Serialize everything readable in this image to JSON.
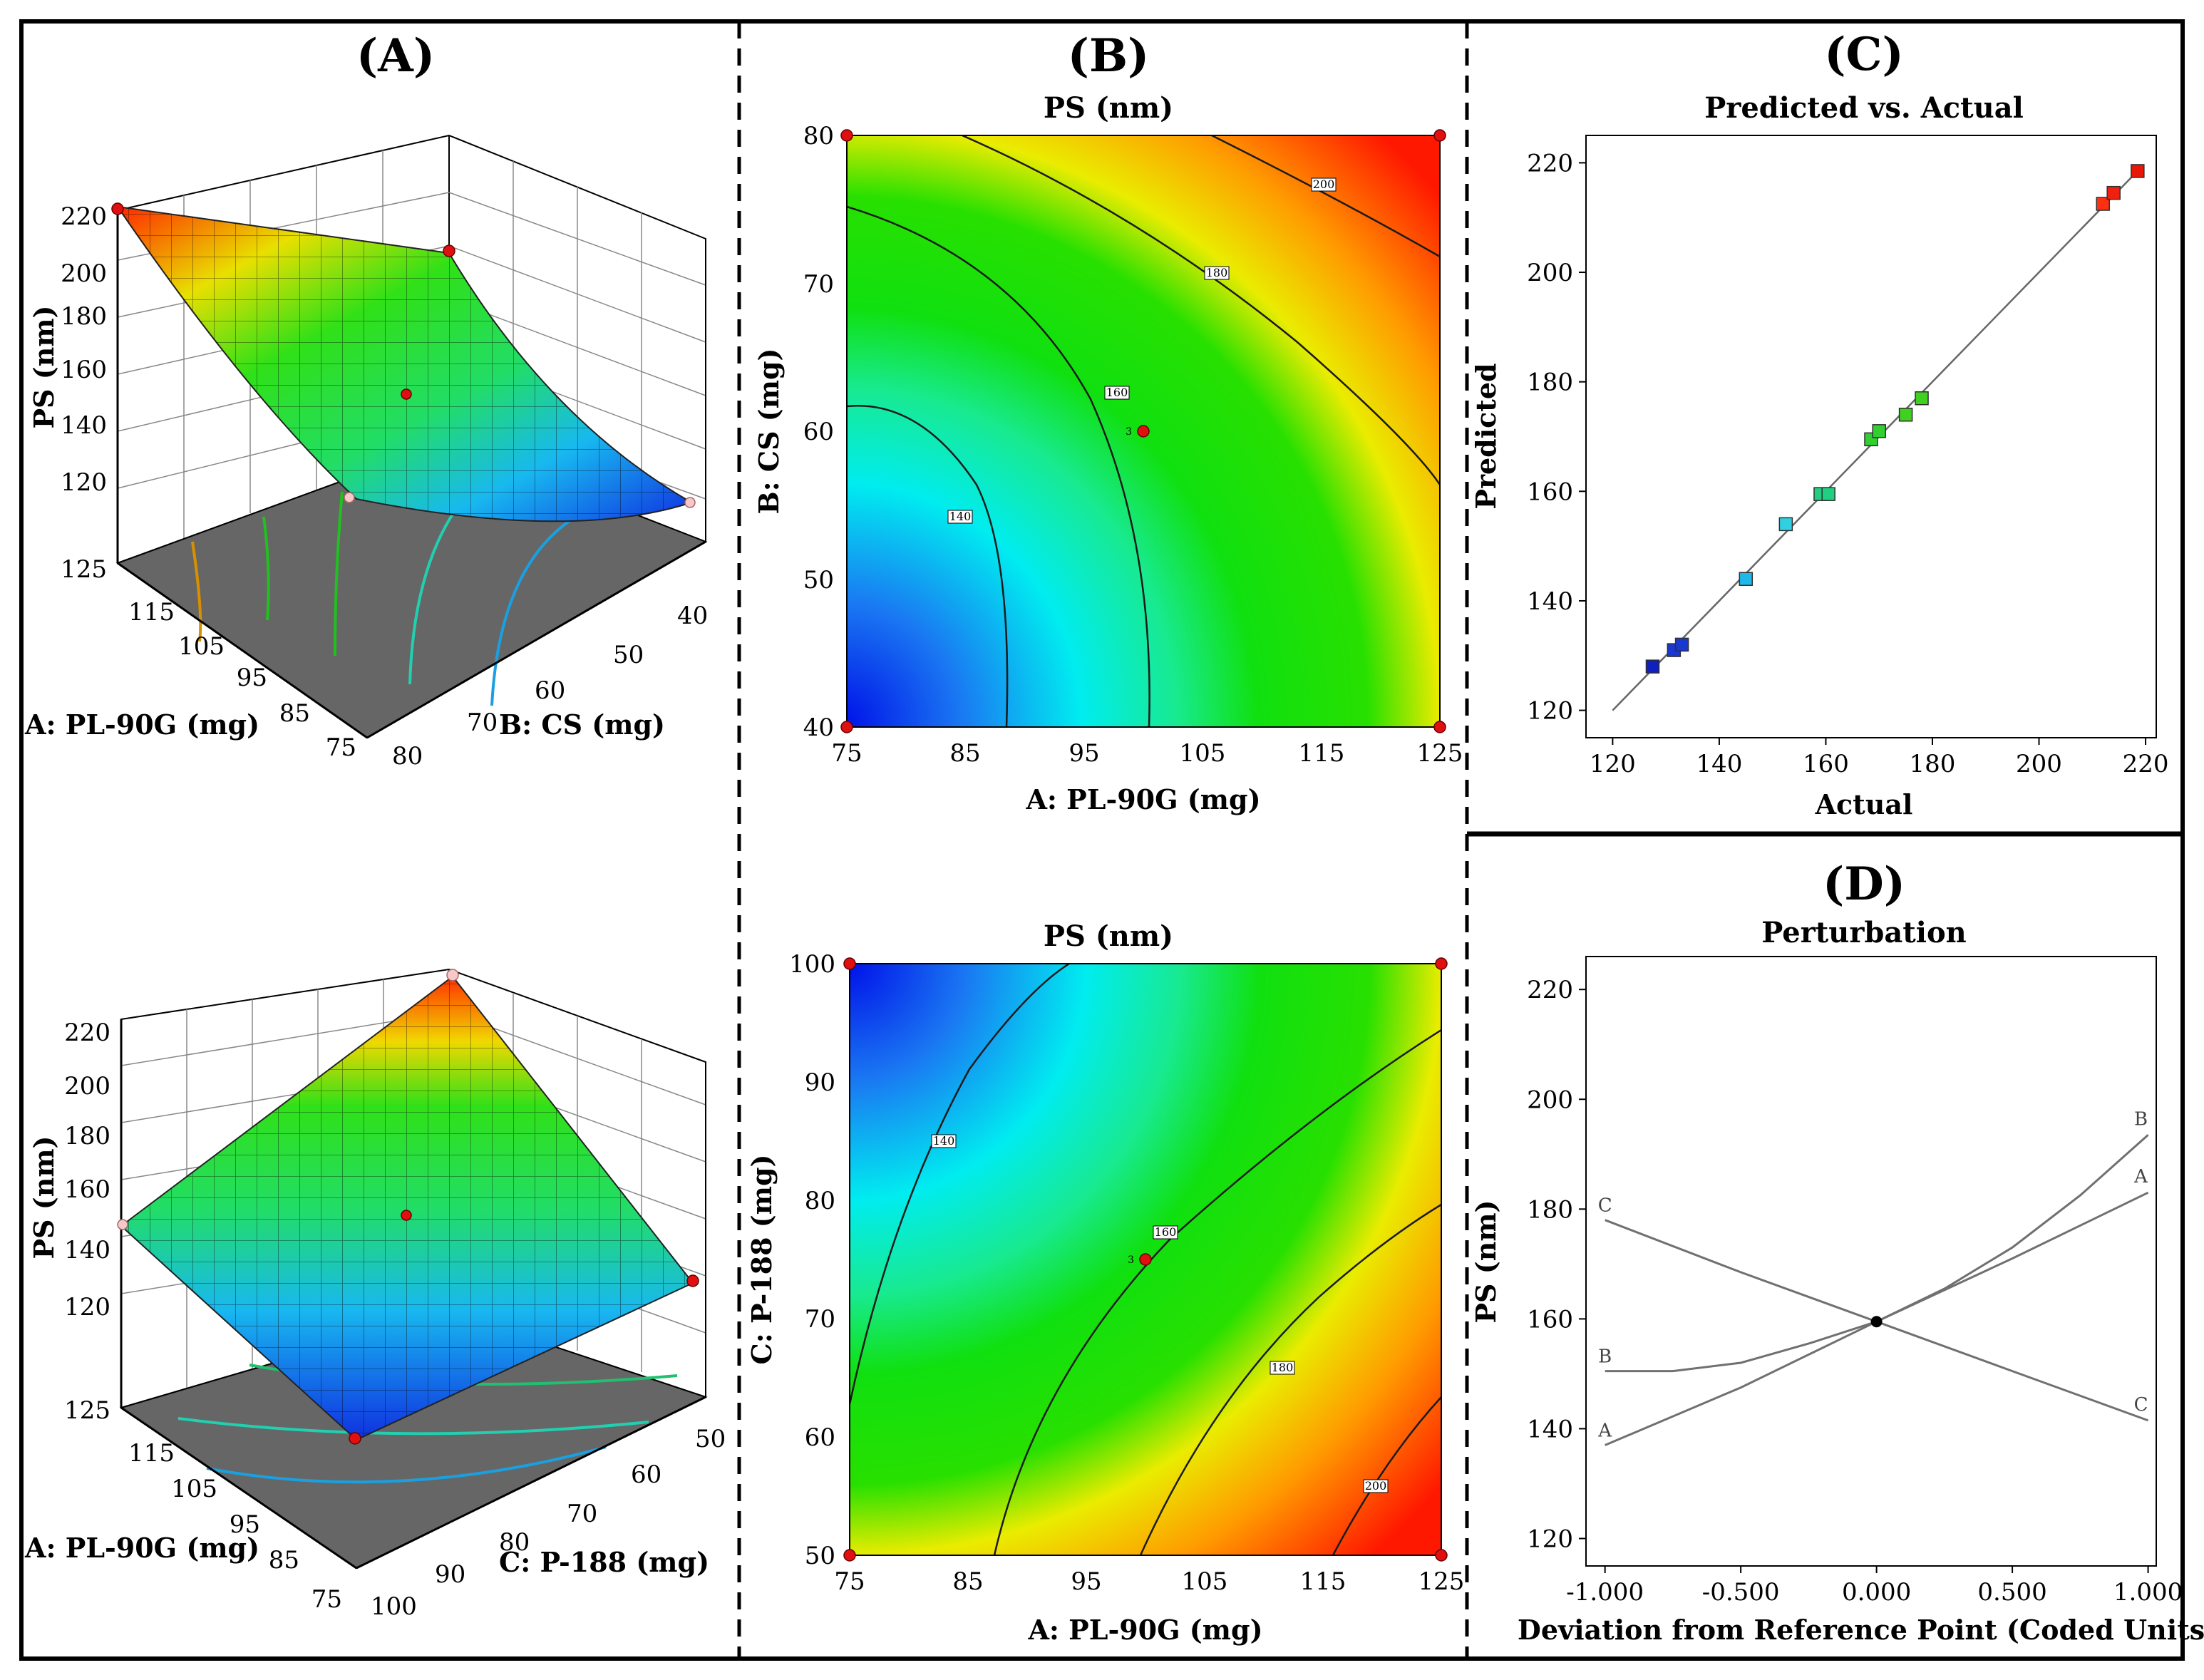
{
  "panels": {
    "A": {
      "label": "(A)"
    },
    "B": {
      "label": "(B)"
    },
    "C": {
      "label": "(C)"
    },
    "D": {
      "label": "(D)"
    }
  },
  "chart_data": [
    {
      "id": "A-top",
      "type": "surface3d",
      "z_label": "PS (nm)",
      "z_ticks": [
        120,
        140,
        160,
        180,
        200,
        220
      ],
      "x_label": "A: PL-90G (mg)",
      "x_ticks": [
        125,
        115,
        105,
        95,
        85,
        75
      ],
      "y_label": "B: CS (mg)",
      "y_ticks": [
        40,
        50,
        60,
        70,
        80
      ],
      "corners": [
        {
          "A": 75,
          "B": 80,
          "PS": 220
        },
        {
          "A": 125,
          "B": 80,
          "PS": 204
        },
        {
          "A": 75,
          "B": 40,
          "PS": 158
        },
        {
          "A": 125,
          "B": 40,
          "PS": 126
        }
      ],
      "center": {
        "A": 100,
        "B": 60,
        "PS": 160
      }
    },
    {
      "id": "A-bottom",
      "type": "surface3d",
      "z_label": "PS (nm)",
      "z_ticks": [
        120,
        140,
        160,
        180,
        200,
        220
      ],
      "x_label": "A: PL-90G (mg)",
      "x_ticks": [
        125,
        115,
        105,
        95,
        85,
        75
      ],
      "y_label": "C: P-188 (mg)",
      "y_ticks": [
        100,
        90,
        80,
        70,
        60,
        50
      ],
      "corners": [
        {
          "A": 75,
          "C": 100,
          "PS": 128
        },
        {
          "A": 125,
          "C": 100,
          "PS": 152
        },
        {
          "A": 75,
          "C": 50,
          "PS": 152
        },
        {
          "A": 125,
          "C": 50,
          "PS": 218
        }
      ],
      "center": {
        "A": 100,
        "C": 75,
        "PS": 160
      }
    },
    {
      "id": "B-top",
      "type": "contour",
      "title": "PS (nm)",
      "xlabel": "A: PL-90G (mg)",
      "ylabel": "B: CS (mg)",
      "x_ticks": [
        75,
        85,
        95,
        105,
        115,
        125
      ],
      "y_ticks": [
        40,
        50,
        60,
        70,
        80
      ],
      "xlim": [
        75,
        125
      ],
      "ylim": [
        40,
        80
      ],
      "contour_levels": [
        140,
        160,
        180,
        200
      ],
      "contour_labels": [
        "140",
        "160",
        "180",
        "200"
      ],
      "design_points": [
        [
          75,
          80
        ],
        [
          125,
          80
        ],
        [
          75,
          40
        ],
        [
          125,
          40
        ],
        [
          100,
          60
        ]
      ],
      "center_label": "3"
    },
    {
      "id": "B-bottom",
      "type": "contour",
      "title": "PS (nm)",
      "xlabel": "A: PL-90G (mg)",
      "ylabel": "C: P-188 (mg)",
      "x_ticks": [
        75,
        85,
        95,
        105,
        115,
        125
      ],
      "y_ticks": [
        50,
        60,
        70,
        80,
        90,
        100
      ],
      "xlim": [
        75,
        125
      ],
      "ylim": [
        50,
        100
      ],
      "contour_levels": [
        140,
        160,
        180,
        200
      ],
      "contour_labels": [
        "140",
        "160",
        "180",
        "200"
      ],
      "design_points": [
        [
          75,
          100
        ],
        [
          125,
          100
        ],
        [
          75,
          50
        ],
        [
          125,
          50
        ],
        [
          100,
          75
        ]
      ],
      "center_label": "3"
    },
    {
      "id": "C",
      "type": "scatter",
      "title": "Predicted vs. Actual",
      "xlabel": "Actual",
      "ylabel": "Predicted",
      "x_ticks": [
        120,
        140,
        160,
        180,
        200,
        220
      ],
      "y_ticks": [
        120,
        140,
        160,
        180,
        200,
        220
      ],
      "xlim": [
        115,
        222
      ],
      "ylim": [
        115,
        225
      ],
      "points": [
        {
          "x": 127.5,
          "y": 128.0,
          "color": "#1020c0"
        },
        {
          "x": 131.5,
          "y": 131.0,
          "color": "#1838d0"
        },
        {
          "x": 133.0,
          "y": 132.0,
          "color": "#1838d0"
        },
        {
          "x": 145.0,
          "y": 144.0,
          "color": "#20b8e8"
        },
        {
          "x": 152.5,
          "y": 154.0,
          "color": "#30d0e0"
        },
        {
          "x": 159.0,
          "y": 159.5,
          "color": "#20d080"
        },
        {
          "x": 160.5,
          "y": 159.5,
          "color": "#20d080"
        },
        {
          "x": 168.5,
          "y": 169.5,
          "color": "#30d030"
        },
        {
          "x": 170.0,
          "y": 171.0,
          "color": "#30d030"
        },
        {
          "x": 175.0,
          "y": 174.0,
          "color": "#40d020"
        },
        {
          "x": 178.0,
          "y": 177.0,
          "color": "#40d020"
        },
        {
          "x": 212.0,
          "y": 212.5,
          "color": "#ff3010"
        },
        {
          "x": 214.0,
          "y": 214.5,
          "color": "#f02010"
        },
        {
          "x": 218.5,
          "y": 218.5,
          "color": "#e81808"
        }
      ],
      "fit_line": [
        [
          120,
          120
        ],
        [
          218.5,
          218.5
        ]
      ]
    },
    {
      "id": "D",
      "type": "line",
      "title": "Perturbation",
      "xlabel": "Deviation from Reference Point (Coded Units)",
      "ylabel": "PS (nm)",
      "x_ticks": [
        "-1.000",
        "-0.500",
        "0.000",
        "0.500",
        "1.000"
      ],
      "y_ticks": [
        120,
        140,
        160,
        180,
        200,
        220
      ],
      "xlim": [
        -1.07,
        1.03
      ],
      "ylim": [
        115,
        226
      ],
      "series": [
        {
          "name": "A",
          "x": [
            -1,
            -0.5,
            0,
            0.5,
            1
          ],
          "y": [
            137.0,
            147.5,
            159.5,
            171.0,
            183.0
          ]
        },
        {
          "name": "B",
          "x": [
            -1,
            -0.75,
            -0.5,
            -0.25,
            0,
            0.25,
            0.5,
            0.75,
            1
          ],
          "y": [
            150.5,
            150.5,
            152.0,
            155.5,
            159.5,
            165.5,
            173.0,
            182.5,
            193.5
          ]
        },
        {
          "name": "C",
          "x": [
            -1,
            -0.5,
            0,
            0.5,
            1
          ],
          "y": [
            178.0,
            168.5,
            159.5,
            150.5,
            141.5
          ]
        }
      ],
      "reference_point": {
        "x": 0,
        "y": 159.5
      }
    }
  ]
}
